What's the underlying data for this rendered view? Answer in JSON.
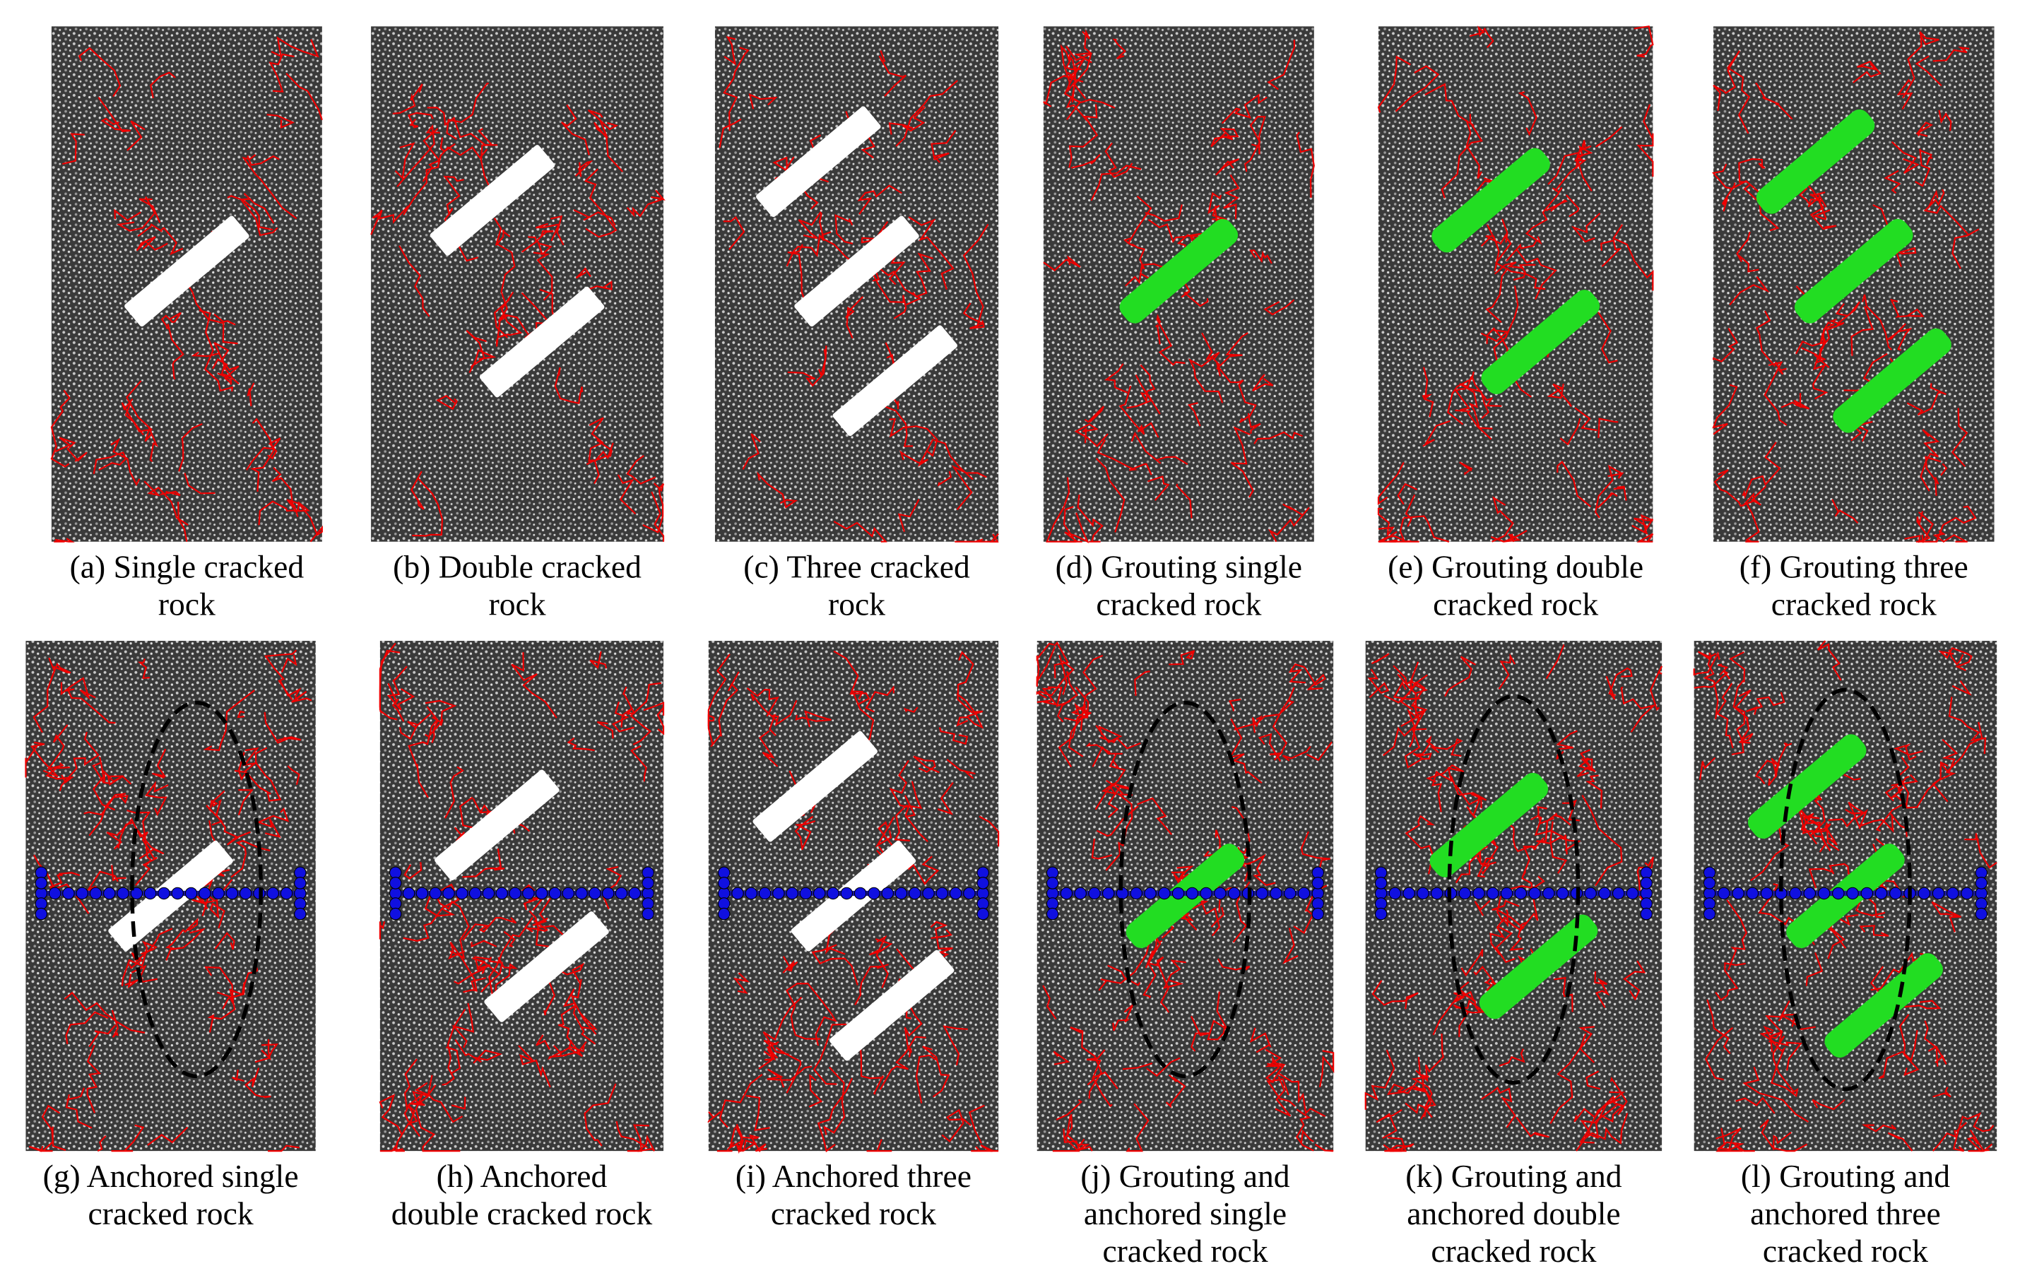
{
  "panels": [
    {
      "caption": [
        "(a) Single cracked",
        "rock"
      ]
    },
    {
      "caption": [
        "(b) Double cracked",
        "rock"
      ]
    },
    {
      "caption": [
        "(c) Three cracked",
        "rock"
      ]
    },
    {
      "caption": [
        "(d) Grouting single",
        "cracked  rock"
      ]
    },
    {
      "caption": [
        "(e) Grouting double",
        "cracked rock"
      ]
    },
    {
      "caption": [
        "(f) Grouting three",
        "cracked rock"
      ]
    },
    {
      "caption": [
        "(g) Anchored  single",
        "cracked rock"
      ]
    },
    {
      "caption": [
        "(h) Anchored",
        "double cracked rock"
      ]
    },
    {
      "caption": [
        "(i) Anchored three",
        "cracked rock"
      ]
    },
    {
      "caption": [
        "(j) Grouting and",
        "anchored  single",
        "cracked rock"
      ]
    },
    {
      "caption": [
        "(k) Grouting and",
        "anchored  double",
        "cracked rock"
      ]
    },
    {
      "caption": [
        "(l) Grouting and",
        "anchored  three",
        "cracked rock"
      ]
    }
  ]
}
